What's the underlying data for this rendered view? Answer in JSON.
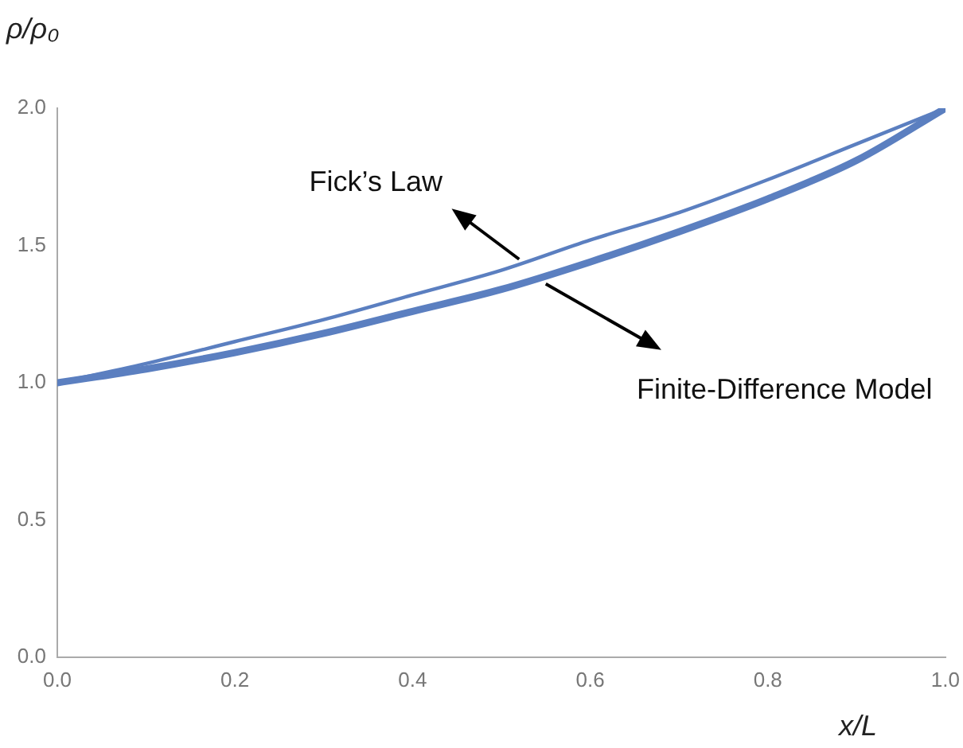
{
  "chart_data": {
    "type": "line",
    "xlabel": "x/L",
    "ylabel": "ρ/ρ₀",
    "xlim": [
      0,
      1
    ],
    "xticks": [
      {
        "value": 0,
        "label": "0.0"
      },
      {
        "value": 0.2,
        "label": "0.2"
      },
      {
        "value": 0.4,
        "label": "0.4"
      },
      {
        "value": 0.6,
        "label": "0.6"
      },
      {
        "value": 0.8,
        "label": "0.8"
      },
      {
        "value": 1,
        "label": "1.0"
      }
    ],
    "ylim": [
      0,
      2
    ],
    "yticks": [
      {
        "value": 0,
        "label": "0.0"
      },
      {
        "value": 0.5,
        "label": "0.5"
      },
      {
        "value": 1,
        "label": "1.0"
      },
      {
        "value": 1.5,
        "label": "1.5"
      },
      {
        "value": 2,
        "label": "2.0"
      }
    ],
    "x": [
      0,
      0.1,
      0.2,
      0.3,
      0.4,
      0.5,
      0.6,
      0.7,
      0.8,
      0.9,
      1
    ],
    "series": [
      {
        "color": "#5b7fc0",
        "values": [
          1,
          1.07,
          1.15,
          1.23,
          1.32,
          1.41,
          1.52,
          1.62,
          1.74,
          1.87,
          2
        ]
      },
      {
        "color": "#5b7fc0",
        "values": [
          1,
          1.05,
          1.11,
          1.18,
          1.26,
          1.34,
          1.44,
          1.55,
          1.67,
          1.81,
          2
        ]
      }
    ],
    "annotations": [
      {
        "text": "Fick’s Law",
        "x": 0.52,
        "y": 1.45
      },
      {
        "text": "Finite-Difference Model",
        "x": 0.55,
        "y": 1.36
      }
    ],
    "grid": false,
    "legend": false,
    "marker": "none",
    "line_style": "solid"
  }
}
